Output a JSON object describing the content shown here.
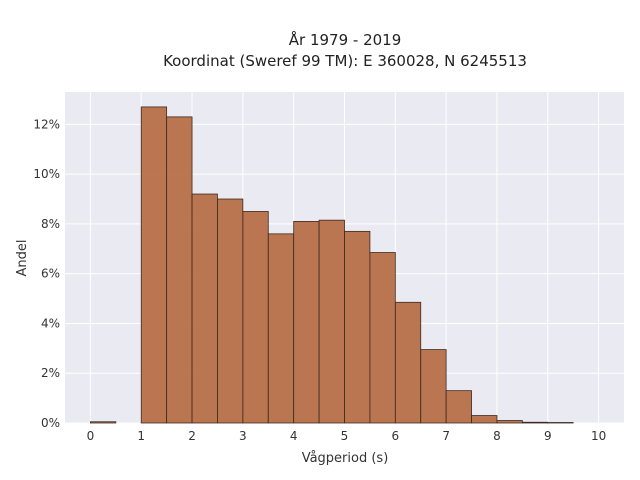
{
  "chart_data": {
    "type": "bar",
    "title_line1": "År 1979 - 2019",
    "title_line2": "Koordinat (Sweref 99 TM): E 360028, N 6245513",
    "xlabel": "Vågperiod (s)",
    "ylabel": "Andel",
    "xlim": [
      -0.5,
      10.5
    ],
    "ylim": [
      0,
      13.3
    ],
    "x_ticks": [
      0,
      1,
      2,
      3,
      4,
      5,
      6,
      7,
      8,
      9,
      10
    ],
    "y_ticks": [
      0,
      2,
      4,
      6,
      8,
      10,
      12
    ],
    "y_tick_suffix": "%",
    "bin_width": 0.5,
    "bins": [
      {
        "x0": 0.0,
        "value": 0.05
      },
      {
        "x0": 0.5,
        "value": 0.0
      },
      {
        "x0": 1.0,
        "value": 12.7
      },
      {
        "x0": 1.5,
        "value": 12.3
      },
      {
        "x0": 2.0,
        "value": 9.2
      },
      {
        "x0": 2.5,
        "value": 9.0
      },
      {
        "x0": 3.0,
        "value": 8.5
      },
      {
        "x0": 3.5,
        "value": 7.6
      },
      {
        "x0": 4.0,
        "value": 8.1
      },
      {
        "x0": 4.5,
        "value": 8.15
      },
      {
        "x0": 5.0,
        "value": 7.7
      },
      {
        "x0": 5.5,
        "value": 6.85
      },
      {
        "x0": 6.0,
        "value": 4.85
      },
      {
        "x0": 6.5,
        "value": 2.95
      },
      {
        "x0": 7.0,
        "value": 1.3
      },
      {
        "x0": 7.5,
        "value": 0.3
      },
      {
        "x0": 8.0,
        "value": 0.1
      },
      {
        "x0": 8.5,
        "value": 0.03
      },
      {
        "x0": 9.0,
        "value": 0.02
      },
      {
        "x0": 9.5,
        "value": 0.0
      }
    ],
    "grid": true,
    "colors": {
      "bar_fill": "#b5683f",
      "bar_edge": "#3d2a1f",
      "plot_background": "#eaeaf2",
      "grid": "#ffffff"
    }
  }
}
